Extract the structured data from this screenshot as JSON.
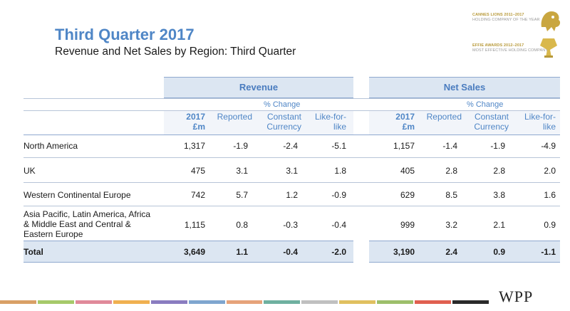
{
  "header": {
    "title": "Third Quarter 2017",
    "subtitle": "Revenue and Net Sales by Region: Third Quarter"
  },
  "awards": {
    "cannes_line1": "CANNES LIONS 2011–2017",
    "cannes_line2": "HOLDING COMPANY OF THE YEAR",
    "effie_line1": "EFFIE AWARDS 2012–2017",
    "effie_line2": "MOST EFFECTIVE HOLDING COMPANY"
  },
  "table": {
    "revenue_label": "Revenue",
    "net_sales_label": "Net Sales",
    "pct_change_label": "% Change",
    "col_year": "2017",
    "col_unit": "£m",
    "col_reported": "Reported",
    "col_constant_1": "Constant",
    "col_constant_2": "Currency",
    "col_lfl_1": "Like-for-",
    "col_lfl_2": "like",
    "rows": [
      {
        "region": [
          "North America"
        ],
        "rev": [
          "1,317",
          "-1.9",
          "-2.4",
          "-5.1"
        ],
        "ns": [
          "1,157",
          "-1.4",
          "-1.9",
          "-4.9"
        ]
      },
      {
        "region": [
          "UK"
        ],
        "rev": [
          "475",
          "3.1",
          "3.1",
          "1.8"
        ],
        "ns": [
          "405",
          "2.8",
          "2.8",
          "2.0"
        ]
      },
      {
        "region": [
          "Western Continental Europe"
        ],
        "rev": [
          "742",
          "5.7",
          "1.2",
          "-0.9"
        ],
        "ns": [
          "629",
          "8.5",
          "3.8",
          "1.6"
        ]
      },
      {
        "region": [
          "Asia Pacific, Latin America, Africa",
          "& Middle East and Central &",
          "Eastern Europe"
        ],
        "rev": [
          "1,115",
          "0.8",
          "-0.3",
          "-0.4"
        ],
        "ns": [
          "999",
          "3.2",
          "2.1",
          "0.9"
        ]
      }
    ],
    "total": {
      "region": "Total",
      "rev": [
        "3,649",
        "1.1",
        "-0.4",
        "-2.0"
      ],
      "ns": [
        "3,190",
        "2.4",
        "0.9",
        "-1.1"
      ]
    }
  },
  "footer": {
    "logo": "WPP",
    "strip_colors": [
      "#d9a066",
      "#a6c96a",
      "#e08a9a",
      "#f0b050",
      "#8a7cc0",
      "#7fa6cf",
      "#e6a37a",
      "#6fb0a0",
      "#c0c0c0",
      "#e0c060",
      "#9dbf6b",
      "#e06050",
      "#2a2a2a"
    ]
  }
}
